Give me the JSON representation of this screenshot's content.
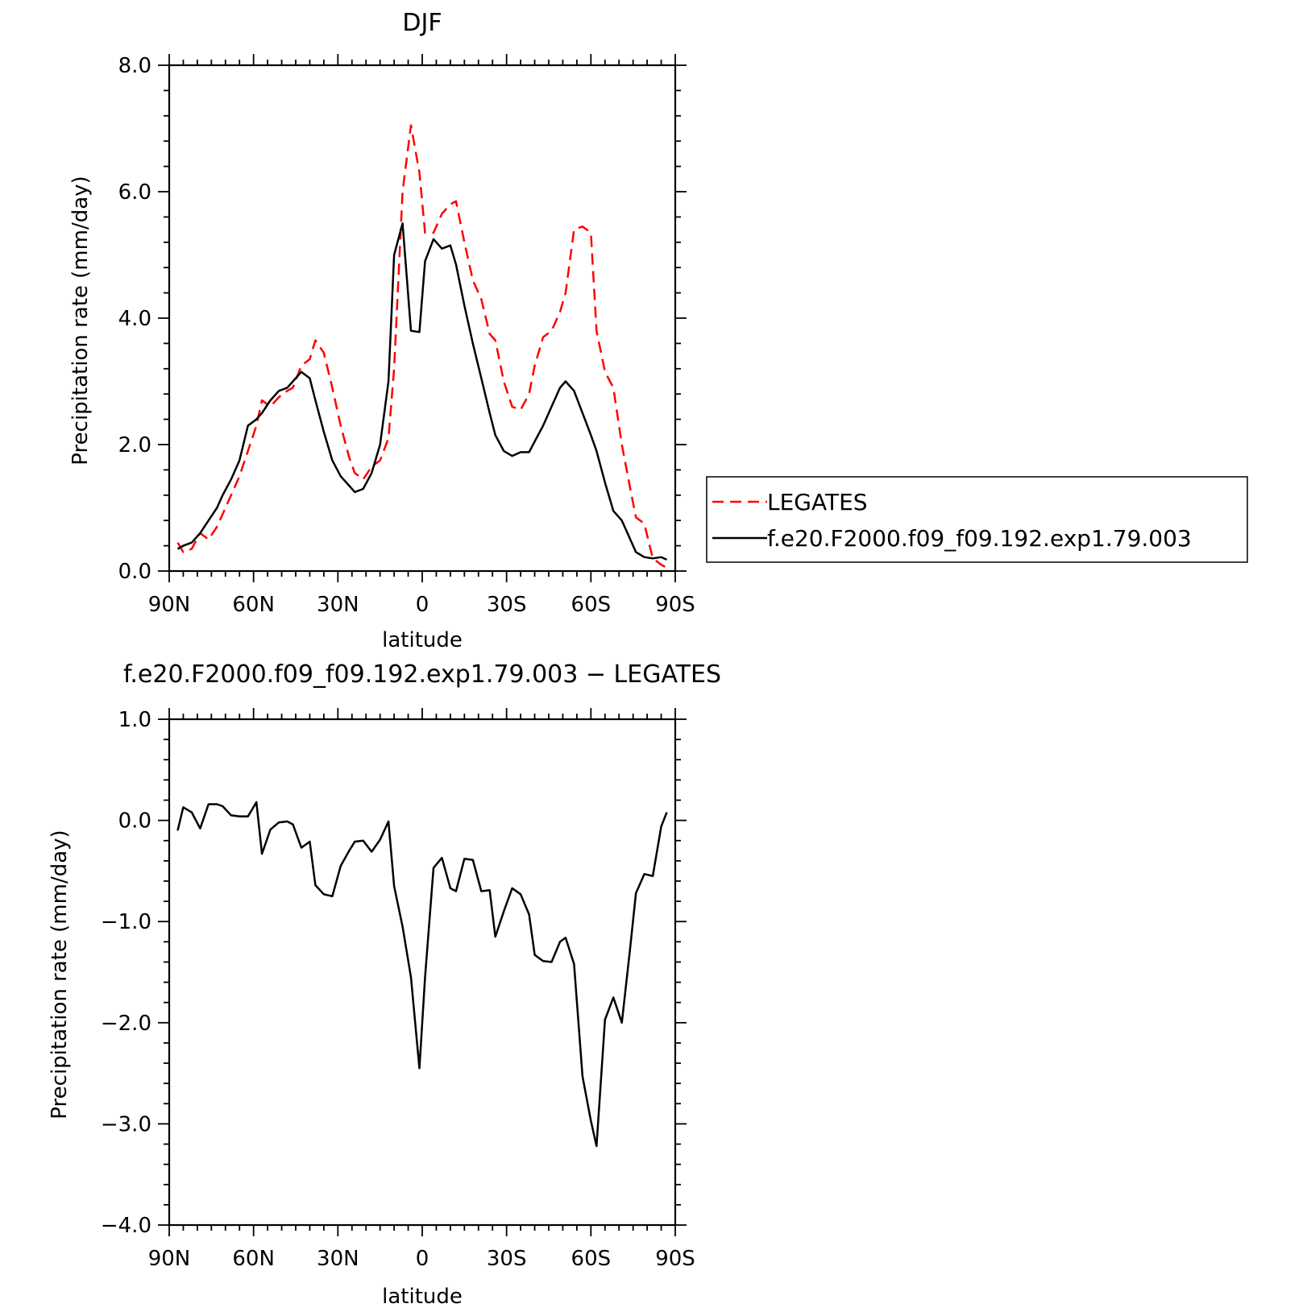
{
  "chart_data": [
    {
      "type": "line",
      "title": "DJF",
      "xlabel": "latitude",
      "ylabel": "Precipitation rate (mm/day)",
      "xlim": [
        90,
        -90
      ],
      "ylim": [
        0,
        8
      ],
      "xtick_values": [
        90,
        60,
        30,
        0,
        -30,
        -60,
        -90
      ],
      "xtick_labels": [
        "90N",
        "60N",
        "30N",
        "0",
        "30S",
        "60S",
        "90S"
      ],
      "ytick_values": [
        0,
        2,
        4,
        6,
        8
      ],
      "ytick_labels": [
        "0.0",
        "2.0",
        "4.0",
        "6.0",
        "8.0"
      ],
      "legend_location": "right",
      "series": [
        {
          "name": "LEGATES",
          "color": "#ff0000",
          "dash": "dashed",
          "x": [
            87,
            85,
            82,
            79,
            76,
            73,
            71,
            68,
            65,
            62,
            59,
            57,
            54,
            51,
            48,
            46,
            43,
            40,
            38,
            35,
            32,
            29,
            26,
            24,
            21,
            18,
            15,
            12,
            10,
            7,
            4,
            1,
            -1,
            -4,
            -7,
            -10,
            -12,
            -15,
            -18,
            -21,
            -24,
            -26,
            -29,
            -32,
            -35,
            -38,
            -40,
            -43,
            -46,
            -49,
            -51,
            -54,
            -57,
            -60,
            -62,
            -65,
            -68,
            -71,
            -74,
            -76,
            -79,
            -82,
            -85,
            -87
          ],
          "y": [
            0.45,
            0.3,
            0.35,
            0.6,
            0.5,
            0.7,
            0.9,
            1.2,
            1.5,
            1.9,
            2.3,
            2.7,
            2.6,
            2.75,
            2.85,
            2.9,
            3.25,
            3.35,
            3.65,
            3.45,
            2.9,
            2.3,
            1.8,
            1.55,
            1.45,
            1.65,
            1.75,
            2.1,
            3.2,
            6.0,
            7.05,
            6.3,
            5.35,
            5.35,
            5.65,
            5.8,
            5.85,
            5.2,
            4.6,
            4.3,
            3.75,
            3.65,
            3.0,
            2.6,
            2.55,
            2.8,
            3.25,
            3.7,
            3.8,
            4.1,
            4.4,
            5.4,
            5.45,
            5.35,
            3.8,
            3.15,
            2.9,
            2.0,
            1.3,
            0.85,
            0.75,
            0.2,
            0.1,
            0.05
          ]
        },
        {
          "name": "f.e20.F2000.f09_f09.192.exp1.79.003",
          "color": "#000000",
          "dash": "solid",
          "x": [
            87,
            85,
            82,
            79,
            76,
            73,
            71,
            68,
            65,
            62,
            59,
            57,
            54,
            51,
            48,
            46,
            43,
            40,
            38,
            35,
            32,
            29,
            26,
            24,
            21,
            18,
            15,
            12,
            10,
            7,
            4,
            1,
            -1,
            -4,
            -7,
            -10,
            -12,
            -15,
            -18,
            -21,
            -24,
            -26,
            -29,
            -32,
            -35,
            -38,
            -40,
            -43,
            -46,
            -49,
            -51,
            -54,
            -57,
            -60,
            -62,
            -65,
            -68,
            -71,
            -74,
            -76,
            -79,
            -82,
            -85,
            -87
          ],
          "y": [
            0.35,
            0.4,
            0.45,
            0.6,
            0.8,
            1.0,
            1.2,
            1.45,
            1.75,
            2.3,
            2.4,
            2.5,
            2.7,
            2.85,
            2.9,
            3.0,
            3.15,
            3.05,
            2.7,
            2.2,
            1.75,
            1.5,
            1.35,
            1.25,
            1.3,
            1.55,
            2.0,
            3.0,
            5.0,
            5.5,
            3.8,
            3.78,
            4.9,
            5.25,
            5.1,
            5.15,
            4.85,
            4.2,
            3.6,
            3.05,
            2.5,
            2.15,
            1.9,
            1.82,
            1.88,
            1.88,
            2.05,
            2.3,
            2.6,
            2.9,
            3.0,
            2.85,
            2.5,
            2.15,
            1.9,
            1.4,
            0.95,
            0.8,
            0.5,
            0.3,
            0.22,
            0.2,
            0.22,
            0.18
          ]
        }
      ]
    },
    {
      "type": "line",
      "title": "f.e20.F2000.f09_f09.192.exp1.79.003 − LEGATES",
      "xlabel": "latitude",
      "ylabel": "Precipitation rate (mm/day)",
      "xlim": [
        90,
        -90
      ],
      "ylim": [
        -4,
        1
      ],
      "xtick_values": [
        90,
        60,
        30,
        0,
        -30,
        -60,
        -90
      ],
      "xtick_labels": [
        "90N",
        "60N",
        "30N",
        "0",
        "30S",
        "60S",
        "90S"
      ],
      "ytick_values": [
        1,
        0,
        -1,
        -2,
        -3,
        -4
      ],
      "ytick_labels": [
        "1.0",
        "0.0",
        "−1.0",
        "−2.0",
        "−3.0",
        "−4.0"
      ],
      "series": [
        {
          "color": "#000000",
          "dash": "solid",
          "x": [
            87,
            85,
            82,
            79,
            76,
            73,
            71,
            68,
            65,
            62,
            59,
            57,
            54,
            51,
            48,
            46,
            43,
            40,
            38,
            35,
            32,
            29,
            26,
            24,
            21,
            18,
            15,
            12,
            10,
            7,
            4,
            1,
            -1,
            -4,
            -7,
            -10,
            -12,
            -15,
            -18,
            -21,
            -24,
            -26,
            -29,
            -32,
            -35,
            -38,
            -40,
            -43,
            -46,
            -49,
            -51,
            -54,
            -57,
            -60,
            -62,
            -65,
            -68,
            -71,
            -74,
            -76,
            -79,
            -82,
            -85,
            -87
          ],
          "y": [
            -0.1,
            0.13,
            0.08,
            -0.08,
            0.16,
            0.16,
            0.14,
            0.05,
            0.04,
            0.04,
            0.18,
            -0.33,
            -0.09,
            -0.02,
            -0.01,
            -0.04,
            -0.27,
            -0.21,
            -0.64,
            -0.73,
            -0.75,
            -0.45,
            -0.3,
            -0.21,
            -0.2,
            -0.31,
            -0.19,
            -0.01,
            -0.65,
            -1.05,
            -1.55,
            -2.45,
            -1.55,
            -0.47,
            -0.37,
            -0.67,
            -0.7,
            -0.38,
            -0.39,
            -0.7,
            -0.69,
            -1.15,
            -0.9,
            -0.67,
            -0.73,
            -0.93,
            -1.33,
            -1.39,
            -1.4,
            -1.2,
            -1.16,
            -1.42,
            -2.53,
            -2.97,
            -3.22,
            -1.97,
            -1.75,
            -2.0,
            -1.25,
            -0.72,
            -0.53,
            -0.55,
            -0.06,
            0.08
          ]
        }
      ]
    }
  ]
}
